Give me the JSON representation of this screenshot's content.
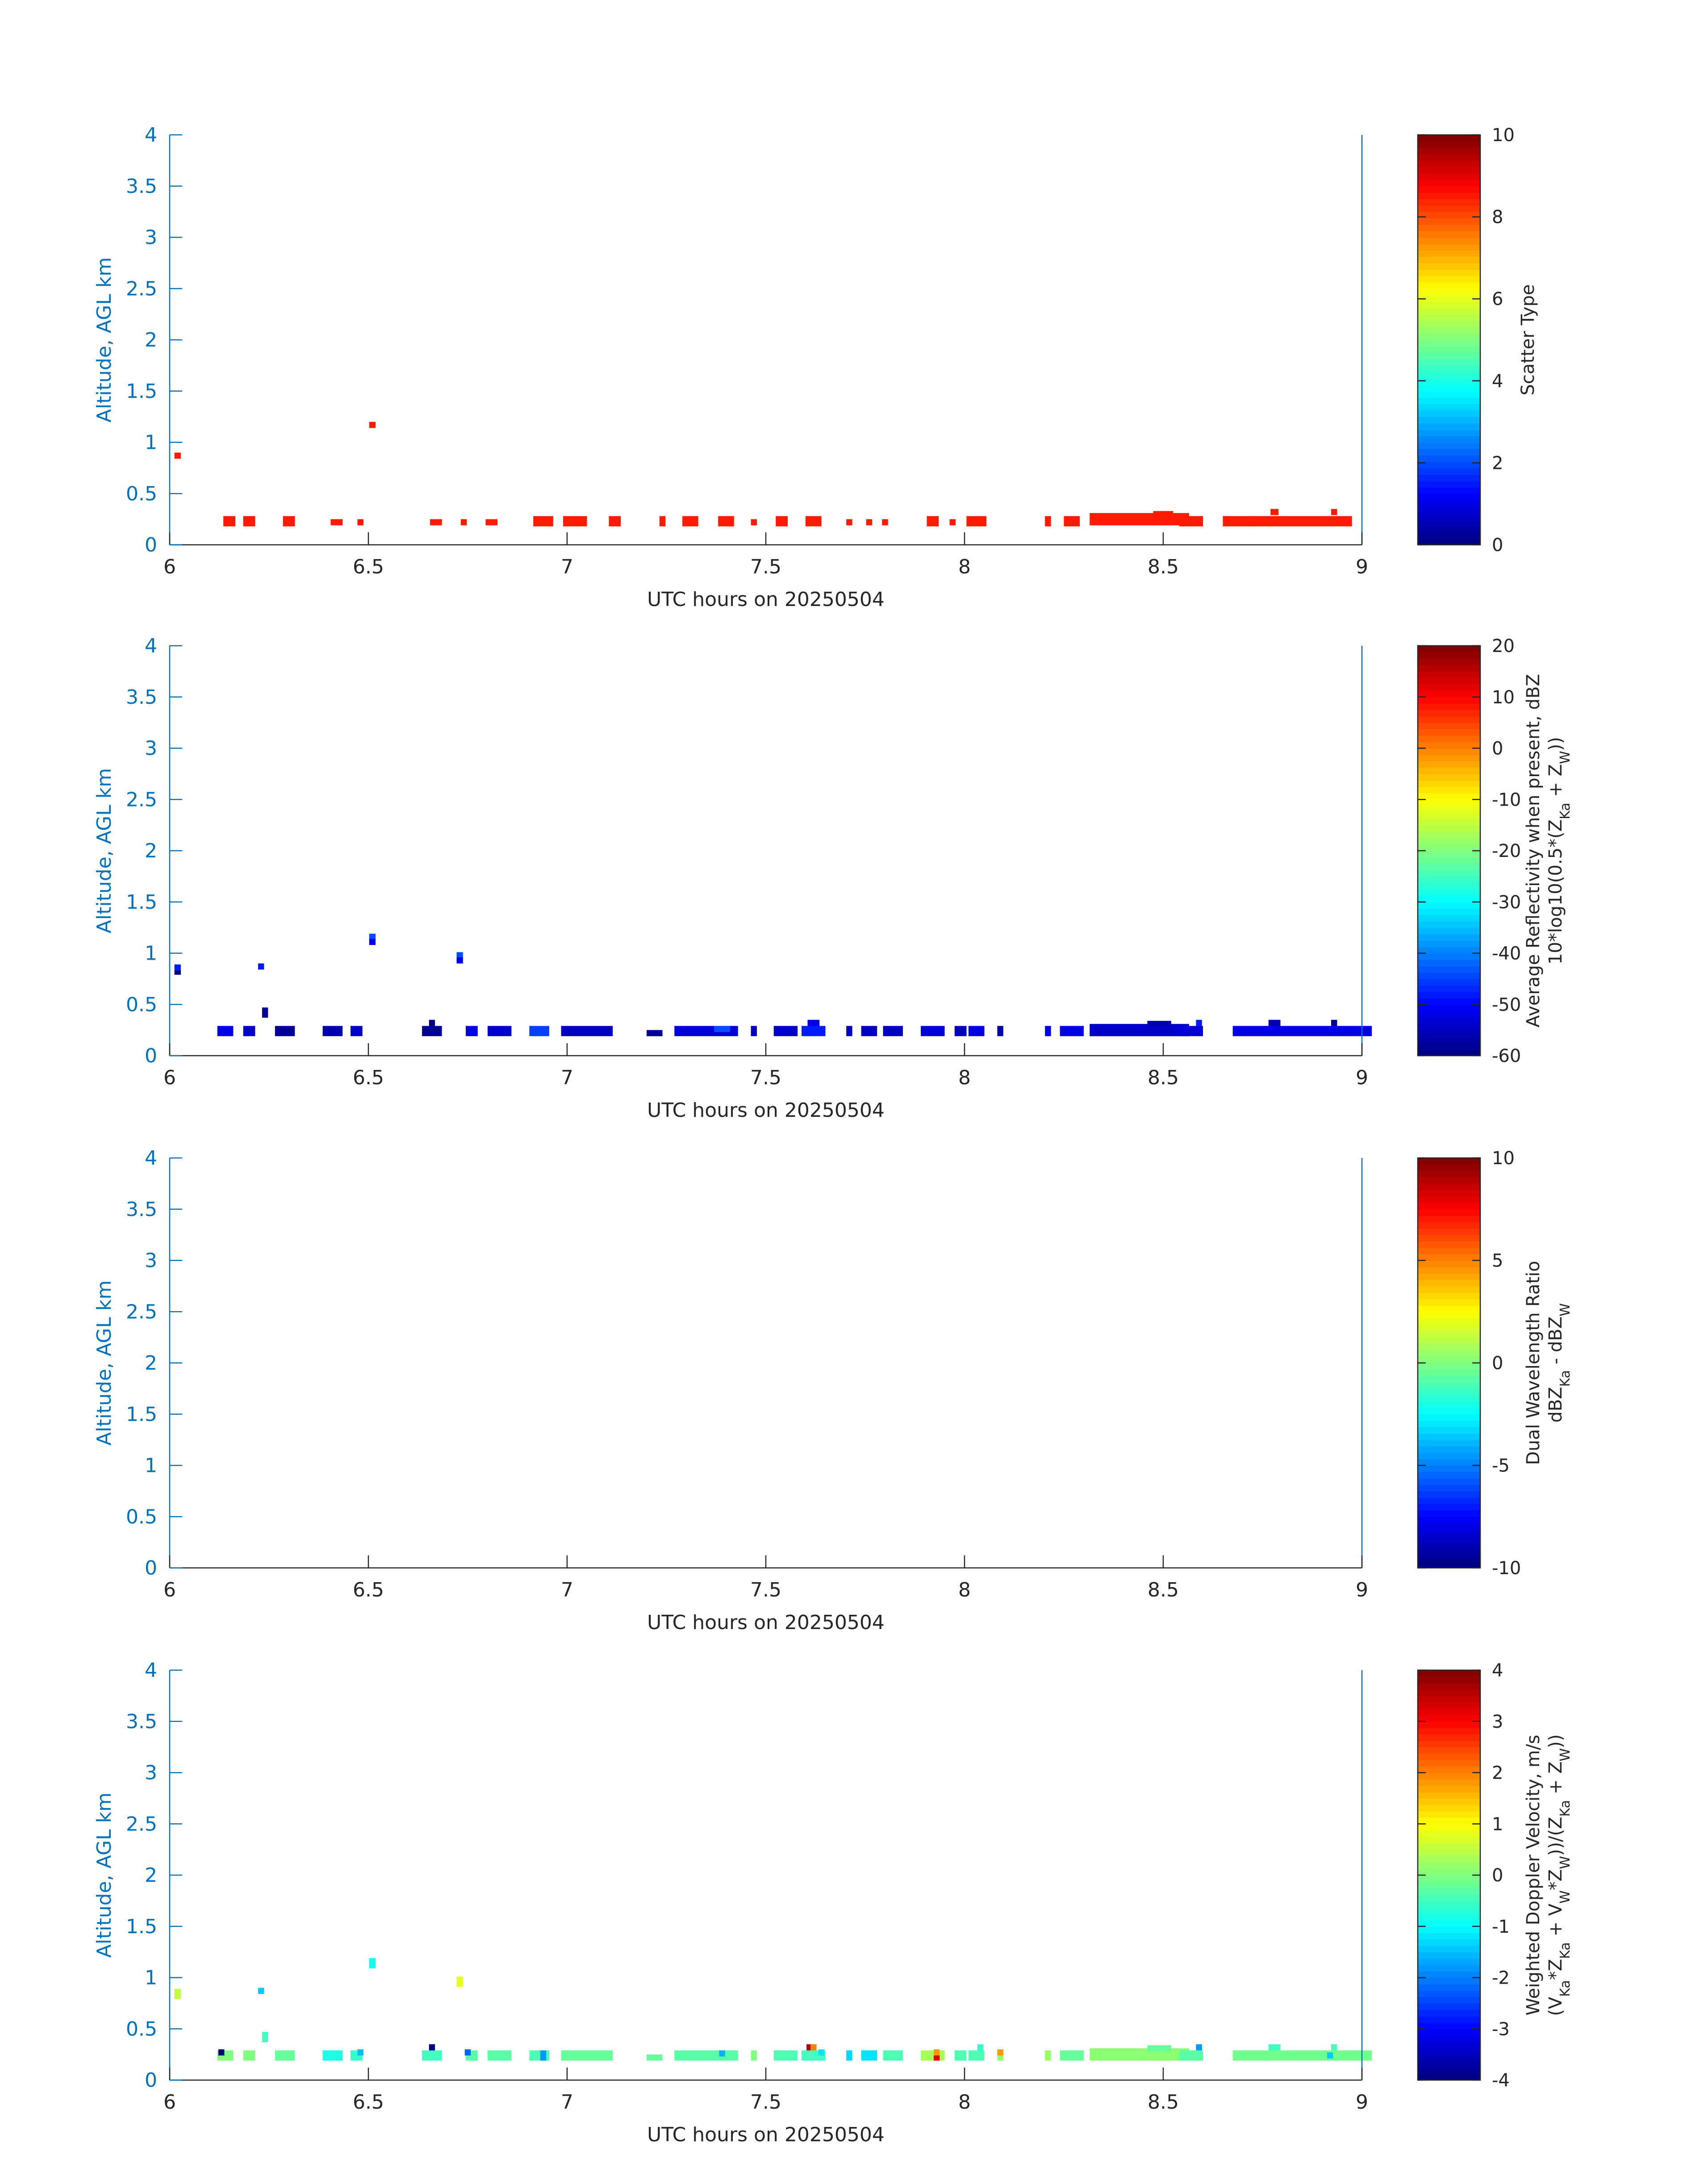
{
  "chart_data": [
    {
      "type": "heatmap",
      "panel": "scatter-type",
      "xlabel": "UTC hours on 20250504",
      "ylabel": "Altitude, AGL km",
      "xlim": [
        6,
        9
      ],
      "ylim": [
        0,
        4
      ],
      "xticks": [
        "6",
        "6.5",
        "7",
        "7.5",
        "8",
        "8.5",
        "9"
      ],
      "yticks": [
        "0",
        "0.5",
        "1",
        "1.5",
        "2",
        "2.5",
        "3",
        "3.5",
        "4"
      ],
      "colorbar": {
        "label_lines": [
          "Scatter Type"
        ],
        "range": [
          0,
          10
        ],
        "ticks": [
          "0",
          "2",
          "4",
          "6",
          "8",
          "10"
        ]
      },
      "cells": [
        {
          "x": 6.02,
          "y": 0.87,
          "w": 0.016,
          "h": 0.06,
          "v": 8.5
        },
        {
          "x": 6.15,
          "y": 0.23,
          "w": 0.03,
          "h": 0.1,
          "v": 8.5
        },
        {
          "x": 6.2,
          "y": 0.23,
          "w": 0.03,
          "h": 0.1,
          "v": 8.5
        },
        {
          "x": 6.3,
          "y": 0.23,
          "w": 0.03,
          "h": 0.1,
          "v": 8.5
        },
        {
          "x": 6.42,
          "y": 0.22,
          "w": 0.03,
          "h": 0.06,
          "v": 8.5
        },
        {
          "x": 6.48,
          "y": 0.22,
          "w": 0.015,
          "h": 0.06,
          "v": 8.5
        },
        {
          "x": 6.51,
          "y": 1.17,
          "w": 0.016,
          "h": 0.06,
          "v": 8.5
        },
        {
          "x": 6.67,
          "y": 0.22,
          "w": 0.03,
          "h": 0.06,
          "v": 8.5
        },
        {
          "x": 6.74,
          "y": 0.22,
          "w": 0.015,
          "h": 0.06,
          "v": 8.5
        },
        {
          "x": 6.81,
          "y": 0.22,
          "w": 0.03,
          "h": 0.06,
          "v": 8.5
        },
        {
          "x": 6.94,
          "y": 0.23,
          "w": 0.05,
          "h": 0.1,
          "v": 8.5
        },
        {
          "x": 7.02,
          "y": 0.23,
          "w": 0.06,
          "h": 0.1,
          "v": 8.5
        },
        {
          "x": 7.12,
          "y": 0.23,
          "w": 0.03,
          "h": 0.1,
          "v": 8.5
        },
        {
          "x": 7.24,
          "y": 0.23,
          "w": 0.015,
          "h": 0.1,
          "v": 8.5
        },
        {
          "x": 7.31,
          "y": 0.23,
          "w": 0.04,
          "h": 0.1,
          "v": 8.5
        },
        {
          "x": 7.4,
          "y": 0.23,
          "w": 0.04,
          "h": 0.1,
          "v": 8.5
        },
        {
          "x": 7.47,
          "y": 0.22,
          "w": 0.015,
          "h": 0.06,
          "v": 8.5
        },
        {
          "x": 7.54,
          "y": 0.23,
          "w": 0.03,
          "h": 0.1,
          "v": 8.5
        },
        {
          "x": 7.62,
          "y": 0.23,
          "w": 0.04,
          "h": 0.1,
          "v": 8.5
        },
        {
          "x": 7.71,
          "y": 0.22,
          "w": 0.015,
          "h": 0.06,
          "v": 8.5
        },
        {
          "x": 7.76,
          "y": 0.22,
          "w": 0.015,
          "h": 0.06,
          "v": 8.5
        },
        {
          "x": 7.8,
          "y": 0.22,
          "w": 0.015,
          "h": 0.06,
          "v": 8.5
        },
        {
          "x": 7.92,
          "y": 0.23,
          "w": 0.03,
          "h": 0.1,
          "v": 8.5
        },
        {
          "x": 7.97,
          "y": 0.22,
          "w": 0.015,
          "h": 0.06,
          "v": 8.5
        },
        {
          "x": 8.03,
          "y": 0.23,
          "w": 0.05,
          "h": 0.1,
          "v": 8.5
        },
        {
          "x": 8.21,
          "y": 0.23,
          "w": 0.015,
          "h": 0.1,
          "v": 8.5
        },
        {
          "x": 8.27,
          "y": 0.23,
          "w": 0.04,
          "h": 0.1,
          "v": 8.5
        },
        {
          "x": 8.44,
          "y": 0.25,
          "w": 0.25,
          "h": 0.12,
          "v": 8.5
        },
        {
          "x": 8.5,
          "y": 0.3,
          "w": 0.05,
          "h": 0.06,
          "v": 8.5
        },
        {
          "x": 8.57,
          "y": 0.23,
          "w": 0.06,
          "h": 0.1,
          "v": 8.5
        },
        {
          "x": 8.69,
          "y": 0.23,
          "w": 0.08,
          "h": 0.1,
          "v": 8.5
        },
        {
          "x": 8.85,
          "y": 0.23,
          "w": 0.25,
          "h": 0.1,
          "v": 8.5
        },
        {
          "x": 8.78,
          "y": 0.32,
          "w": 0.02,
          "h": 0.06,
          "v": 8.5
        },
        {
          "x": 8.93,
          "y": 0.32,
          "w": 0.015,
          "h": 0.06,
          "v": 8.5
        }
      ]
    },
    {
      "type": "heatmap",
      "panel": "average-reflectivity",
      "xlabel": "UTC hours on 20250504",
      "ylabel": "Altitude, AGL km",
      "xlim": [
        6,
        9
      ],
      "ylim": [
        0,
        4
      ],
      "xticks": [
        "6",
        "6.5",
        "7",
        "7.5",
        "8",
        "8.5",
        "9"
      ],
      "yticks": [
        "0",
        "0.5",
        "1",
        "1.5",
        "2",
        "2.5",
        "3",
        "3.5",
        "4"
      ],
      "colorbar": {
        "label_lines": [
          "Average Reflectivity when present, dBZ",
          "10*log10(0.5*(Z_Ka + Z_W))"
        ],
        "range": [
          -60,
          20
        ],
        "ticks": [
          "-60",
          "-50",
          "-40",
          "-30",
          "-20",
          "-10",
          "0",
          "10",
          "20"
        ]
      },
      "cells": [
        {
          "x": 6.02,
          "y": 0.84,
          "w": 0.016,
          "h": 0.1,
          "v": -48
        },
        {
          "x": 6.02,
          "y": 0.81,
          "w": 0.016,
          "h": 0.04,
          "v": -60
        },
        {
          "x": 6.14,
          "y": 0.24,
          "w": 0.04,
          "h": 0.1,
          "v": -52
        },
        {
          "x": 6.2,
          "y": 0.24,
          "w": 0.03,
          "h": 0.1,
          "v": -54
        },
        {
          "x": 6.23,
          "y": 0.87,
          "w": 0.015,
          "h": 0.06,
          "v": -48
        },
        {
          "x": 6.24,
          "y": 0.42,
          "w": 0.015,
          "h": 0.1,
          "v": -58
        },
        {
          "x": 6.29,
          "y": 0.24,
          "w": 0.05,
          "h": 0.1,
          "v": -58
        },
        {
          "x": 6.41,
          "y": 0.24,
          "w": 0.05,
          "h": 0.1,
          "v": -56
        },
        {
          "x": 6.47,
          "y": 0.24,
          "w": 0.03,
          "h": 0.1,
          "v": -54
        },
        {
          "x": 6.51,
          "y": 1.16,
          "w": 0.016,
          "h": 0.06,
          "v": -44
        },
        {
          "x": 6.51,
          "y": 1.11,
          "w": 0.016,
          "h": 0.06,
          "v": -52
        },
        {
          "x": 6.66,
          "y": 0.24,
          "w": 0.05,
          "h": 0.1,
          "v": -58
        },
        {
          "x": 6.66,
          "y": 0.32,
          "w": 0.015,
          "h": 0.06,
          "v": -60
        },
        {
          "x": 6.73,
          "y": 0.98,
          "w": 0.016,
          "h": 0.06,
          "v": -44
        },
        {
          "x": 6.73,
          "y": 0.93,
          "w": 0.016,
          "h": 0.06,
          "v": -52
        },
        {
          "x": 6.76,
          "y": 0.24,
          "w": 0.03,
          "h": 0.1,
          "v": -52
        },
        {
          "x": 6.83,
          "y": 0.24,
          "w": 0.06,
          "h": 0.1,
          "v": -54
        },
        {
          "x": 6.93,
          "y": 0.24,
          "w": 0.05,
          "h": 0.1,
          "v": -45
        },
        {
          "x": 7.05,
          "y": 0.24,
          "w": 0.13,
          "h": 0.1,
          "v": -55
        },
        {
          "x": 7.22,
          "y": 0.22,
          "w": 0.04,
          "h": 0.06,
          "v": -58
        },
        {
          "x": 7.35,
          "y": 0.24,
          "w": 0.16,
          "h": 0.1,
          "v": -53
        },
        {
          "x": 7.39,
          "y": 0.26,
          "w": 0.04,
          "h": 0.06,
          "v": -44
        },
        {
          "x": 7.47,
          "y": 0.24,
          "w": 0.015,
          "h": 0.1,
          "v": -55
        },
        {
          "x": 7.55,
          "y": 0.24,
          "w": 0.06,
          "h": 0.1,
          "v": -54
        },
        {
          "x": 7.62,
          "y": 0.24,
          "w": 0.06,
          "h": 0.1,
          "v": -48
        },
        {
          "x": 7.62,
          "y": 0.32,
          "w": 0.03,
          "h": 0.06,
          "v": -52
        },
        {
          "x": 7.71,
          "y": 0.24,
          "w": 0.015,
          "h": 0.1,
          "v": -55
        },
        {
          "x": 7.76,
          "y": 0.24,
          "w": 0.04,
          "h": 0.1,
          "v": -55
        },
        {
          "x": 7.82,
          "y": 0.24,
          "w": 0.05,
          "h": 0.1,
          "v": -55
        },
        {
          "x": 7.92,
          "y": 0.24,
          "w": 0.06,
          "h": 0.1,
          "v": -53
        },
        {
          "x": 7.99,
          "y": 0.24,
          "w": 0.03,
          "h": 0.1,
          "v": -55
        },
        {
          "x": 8.03,
          "y": 0.24,
          "w": 0.04,
          "h": 0.1,
          "v": -52
        },
        {
          "x": 8.09,
          "y": 0.24,
          "w": 0.015,
          "h": 0.1,
          "v": -56
        },
        {
          "x": 8.21,
          "y": 0.24,
          "w": 0.015,
          "h": 0.1,
          "v": -52
        },
        {
          "x": 8.27,
          "y": 0.24,
          "w": 0.06,
          "h": 0.1,
          "v": -52
        },
        {
          "x": 8.44,
          "y": 0.25,
          "w": 0.25,
          "h": 0.12,
          "v": -54
        },
        {
          "x": 8.49,
          "y": 0.31,
          "w": 0.06,
          "h": 0.06,
          "v": -56
        },
        {
          "x": 8.57,
          "y": 0.24,
          "w": 0.06,
          "h": 0.1,
          "v": -53
        },
        {
          "x": 8.59,
          "y": 0.32,
          "w": 0.015,
          "h": 0.06,
          "v": -48
        },
        {
          "x": 8.85,
          "y": 0.24,
          "w": 0.35,
          "h": 0.1,
          "v": -52
        },
        {
          "x": 8.78,
          "y": 0.32,
          "w": 0.03,
          "h": 0.06,
          "v": -56
        },
        {
          "x": 8.93,
          "y": 0.32,
          "w": 0.015,
          "h": 0.06,
          "v": -58
        }
      ]
    },
    {
      "type": "heatmap",
      "panel": "dual-wavelength-ratio",
      "xlabel": "UTC hours on 20250504",
      "ylabel": "Altitude, AGL km",
      "xlim": [
        6,
        9
      ],
      "ylim": [
        0,
        4
      ],
      "xticks": [
        "6",
        "6.5",
        "7",
        "7.5",
        "8",
        "8.5",
        "9"
      ],
      "yticks": [
        "0",
        "0.5",
        "1",
        "1.5",
        "2",
        "2.5",
        "3",
        "3.5",
        "4"
      ],
      "colorbar": {
        "label_lines": [
          "Dual Wavelength Ratio",
          "dBZ_Ka - dBZ_W"
        ],
        "range": [
          -10,
          10
        ],
        "ticks": [
          "-10",
          "-5",
          "0",
          "5",
          "10"
        ]
      },
      "cells": []
    },
    {
      "type": "heatmap",
      "panel": "weighted-doppler-velocity",
      "xlabel": "UTC hours on 20250504",
      "ylabel": "Altitude, AGL km",
      "xlim": [
        6,
        9
      ],
      "ylim": [
        0,
        4
      ],
      "xticks": [
        "6",
        "6.5",
        "7",
        "7.5",
        "8",
        "8.5",
        "9"
      ],
      "yticks": [
        "0",
        "0.5",
        "1",
        "1.5",
        "2",
        "2.5",
        "3",
        "3.5",
        "4"
      ],
      "colorbar": {
        "label_lines": [
          "Weighted Doppler Velocity, m/s",
          "(V_Ka*Z_Ka + V_W*Z_W))/(Z_Ka + Z_W))"
        ],
        "range": [
          -4,
          4
        ],
        "ticks": [
          "-4",
          "-3",
          "-2",
          "-1",
          "0",
          "1",
          "2",
          "3",
          "4"
        ]
      },
      "cells": [
        {
          "x": 6.02,
          "y": 0.84,
          "w": 0.016,
          "h": 0.1,
          "v": 0.5
        },
        {
          "x": 6.14,
          "y": 0.24,
          "w": 0.04,
          "h": 0.1,
          "v": 0.0
        },
        {
          "x": 6.13,
          "y": 0.27,
          "w": 0.015,
          "h": 0.06,
          "v": -4.0
        },
        {
          "x": 6.2,
          "y": 0.24,
          "w": 0.03,
          "h": 0.1,
          "v": 0.0
        },
        {
          "x": 6.23,
          "y": 0.87,
          "w": 0.015,
          "h": 0.06,
          "v": -1.4
        },
        {
          "x": 6.24,
          "y": 0.42,
          "w": 0.015,
          "h": 0.1,
          "v": -0.5
        },
        {
          "x": 6.29,
          "y": 0.24,
          "w": 0.05,
          "h": 0.1,
          "v": -0.2
        },
        {
          "x": 6.41,
          "y": 0.24,
          "w": 0.05,
          "h": 0.1,
          "v": -0.8
        },
        {
          "x": 6.47,
          "y": 0.24,
          "w": 0.03,
          "h": 0.1,
          "v": -0.6
        },
        {
          "x": 6.48,
          "y": 0.27,
          "w": 0.015,
          "h": 0.06,
          "v": -1.5
        },
        {
          "x": 6.51,
          "y": 1.14,
          "w": 0.016,
          "h": 0.1,
          "v": -0.9
        },
        {
          "x": 6.66,
          "y": 0.24,
          "w": 0.05,
          "h": 0.1,
          "v": -0.5
        },
        {
          "x": 6.66,
          "y": 0.32,
          "w": 0.015,
          "h": 0.06,
          "v": -4.0
        },
        {
          "x": 6.73,
          "y": 0.96,
          "w": 0.016,
          "h": 0.1,
          "v": 0.8
        },
        {
          "x": 6.76,
          "y": 0.24,
          "w": 0.03,
          "h": 0.1,
          "v": -0.3
        },
        {
          "x": 6.75,
          "y": 0.27,
          "w": 0.015,
          "h": 0.06,
          "v": -2.2
        },
        {
          "x": 6.83,
          "y": 0.24,
          "w": 0.06,
          "h": 0.1,
          "v": -0.3
        },
        {
          "x": 6.93,
          "y": 0.24,
          "w": 0.05,
          "h": 0.1,
          "v": -0.4
        },
        {
          "x": 6.94,
          "y": 0.24,
          "w": 0.015,
          "h": 0.1,
          "v": -1.8
        },
        {
          "x": 7.05,
          "y": 0.24,
          "w": 0.13,
          "h": 0.1,
          "v": -0.2
        },
        {
          "x": 7.22,
          "y": 0.22,
          "w": 0.04,
          "h": 0.06,
          "v": -0.2
        },
        {
          "x": 7.35,
          "y": 0.24,
          "w": 0.16,
          "h": 0.1,
          "v": -0.3
        },
        {
          "x": 7.39,
          "y": 0.26,
          "w": 0.015,
          "h": 0.06,
          "v": -1.6
        },
        {
          "x": 7.47,
          "y": 0.24,
          "w": 0.015,
          "h": 0.1,
          "v": 0.0
        },
        {
          "x": 7.55,
          "y": 0.24,
          "w": 0.06,
          "h": 0.1,
          "v": -0.4
        },
        {
          "x": 7.62,
          "y": 0.24,
          "w": 0.06,
          "h": 0.1,
          "v": -0.5
        },
        {
          "x": 7.61,
          "y": 0.32,
          "w": 0.015,
          "h": 0.06,
          "v": 3.6
        },
        {
          "x": 7.62,
          "y": 0.32,
          "w": 0.015,
          "h": 0.06,
          "v": 2.0
        },
        {
          "x": 7.64,
          "y": 0.27,
          "w": 0.015,
          "h": 0.06,
          "v": -1.2
        },
        {
          "x": 7.71,
          "y": 0.24,
          "w": 0.015,
          "h": 0.1,
          "v": -1.3
        },
        {
          "x": 7.76,
          "y": 0.24,
          "w": 0.04,
          "h": 0.1,
          "v": -1.2
        },
        {
          "x": 7.82,
          "y": 0.24,
          "w": 0.05,
          "h": 0.1,
          "v": -0.4
        },
        {
          "x": 7.92,
          "y": 0.24,
          "w": 0.06,
          "h": 0.1,
          "v": 0.3
        },
        {
          "x": 7.93,
          "y": 0.22,
          "w": 0.015,
          "h": 0.06,
          "v": 3.2
        },
        {
          "x": 7.93,
          "y": 0.27,
          "w": 0.015,
          "h": 0.06,
          "v": 1.8
        },
        {
          "x": 7.99,
          "y": 0.24,
          "w": 0.03,
          "h": 0.1,
          "v": -0.4
        },
        {
          "x": 8.03,
          "y": 0.24,
          "w": 0.04,
          "h": 0.1,
          "v": -0.4
        },
        {
          "x": 8.04,
          "y": 0.32,
          "w": 0.015,
          "h": 0.06,
          "v": -0.6
        },
        {
          "x": 8.09,
          "y": 0.24,
          "w": 0.015,
          "h": 0.1,
          "v": 0.2
        },
        {
          "x": 8.09,
          "y": 0.27,
          "w": 0.015,
          "h": 0.06,
          "v": 1.8
        },
        {
          "x": 8.21,
          "y": 0.24,
          "w": 0.015,
          "h": 0.1,
          "v": 0.2
        },
        {
          "x": 8.27,
          "y": 0.24,
          "w": 0.06,
          "h": 0.1,
          "v": -0.2
        },
        {
          "x": 8.44,
          "y": 0.25,
          "w": 0.25,
          "h": 0.12,
          "v": 0.1
        },
        {
          "x": 8.49,
          "y": 0.31,
          "w": 0.06,
          "h": 0.06,
          "v": -0.2
        },
        {
          "x": 8.57,
          "y": 0.24,
          "w": 0.06,
          "h": 0.1,
          "v": -0.3
        },
        {
          "x": 8.59,
          "y": 0.32,
          "w": 0.015,
          "h": 0.06,
          "v": -1.8
        },
        {
          "x": 8.85,
          "y": 0.24,
          "w": 0.35,
          "h": 0.1,
          "v": -0.1
        },
        {
          "x": 8.78,
          "y": 0.32,
          "w": 0.03,
          "h": 0.06,
          "v": -0.5
        },
        {
          "x": 8.93,
          "y": 0.32,
          "w": 0.015,
          "h": 0.06,
          "v": -0.4
        },
        {
          "x": 8.92,
          "y": 0.24,
          "w": 0.015,
          "h": 0.06,
          "v": -1.4
        }
      ]
    }
  ]
}
